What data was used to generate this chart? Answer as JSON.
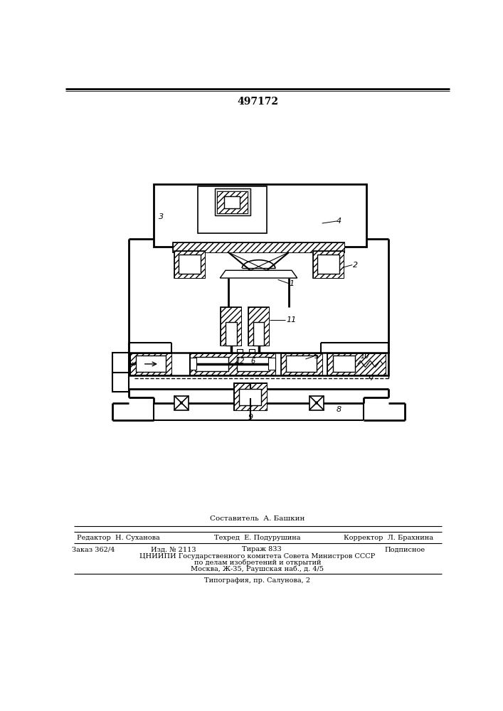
{
  "title": "497172",
  "background_color": "#ffffff",
  "line_color": "#000000",
  "figsize": [
    7.07,
    10.0
  ],
  "dpi": 100,
  "footer": {
    "line1": "Составитель  А. Башкин",
    "editor": "Редактор  Н. Суханова",
    "techred": "Техред  Е. Подурушина",
    "corrector": "Корректор  Л. Брахнина",
    "order": "Заказ 362/4",
    "izd": "Изд. № 2113",
    "tirazh": "Тираж 833",
    "podpisnoe": "Подписное",
    "org": "ЦНИИПИ Государственного комитета Совета Министров СССР",
    "org2": "по делам изобретений и открытий",
    "org3": "Москва, Ж-35, Раушская наб., д. 4/5",
    "tipography": "Типография, пр. Салунова, 2"
  }
}
